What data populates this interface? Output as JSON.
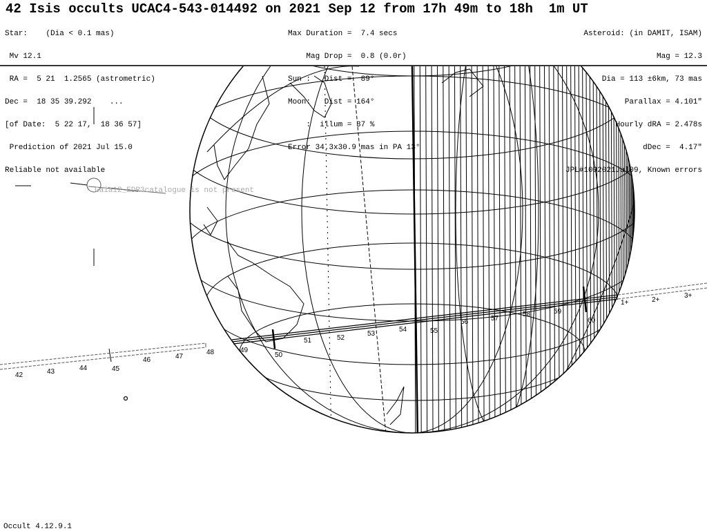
{
  "title": "42 Isis occults UCAC4-543-014492 on 2021 Sep 12 from 17h 49m to 18h  1m UT",
  "star": [
    "Star:    (Dia < 0.1 mas)",
    " Mv 12.1",
    " RA =  5 21  1.2565 (astrometric)",
    "Dec =  18 35 39.292    ...",
    "[of Date:  5 22 17,  18 36 57]",
    " Prediction of 2021 Jul 15.0",
    "Reliable not available"
  ],
  "event": [
    "Max Duration =  7.4 secs",
    "    Mag Drop =  0.8 (0.0r)",
    "Sun :   Dist =  89°",
    "Moon:   Dist = 164°",
    "    :  illum = 37 %",
    "Error 34.3x30.9 mas in PA 13°"
  ],
  "asteroid": [
    "Asteroid: (in DAMIT, ISAM)",
    "Mag = 12.3",
    "Dia = 113 ±6km, 73 mas",
    "Parallax = 4.101\"",
    "Hourly dRA = 2.478s",
    "dDec =  4.17\"",
    "JPL#1092021Jul09, Known errors"
  ],
  "watermark": "Gaia12_EDR3catalogue is not present",
  "version": "Occult 4.12.9.1",
  "track_labels_outside_left": [
    "42",
    "43",
    "44",
    "45",
    "46",
    "47",
    "48"
  ],
  "track_labels_on_globe": [
    "49",
    "50",
    "51",
    "52",
    "53",
    "54",
    "55",
    "56",
    "57",
    "58",
    "59",
    "60"
  ],
  "track_labels_outside_right": [
    "1+",
    "2+",
    "3+"
  ]
}
